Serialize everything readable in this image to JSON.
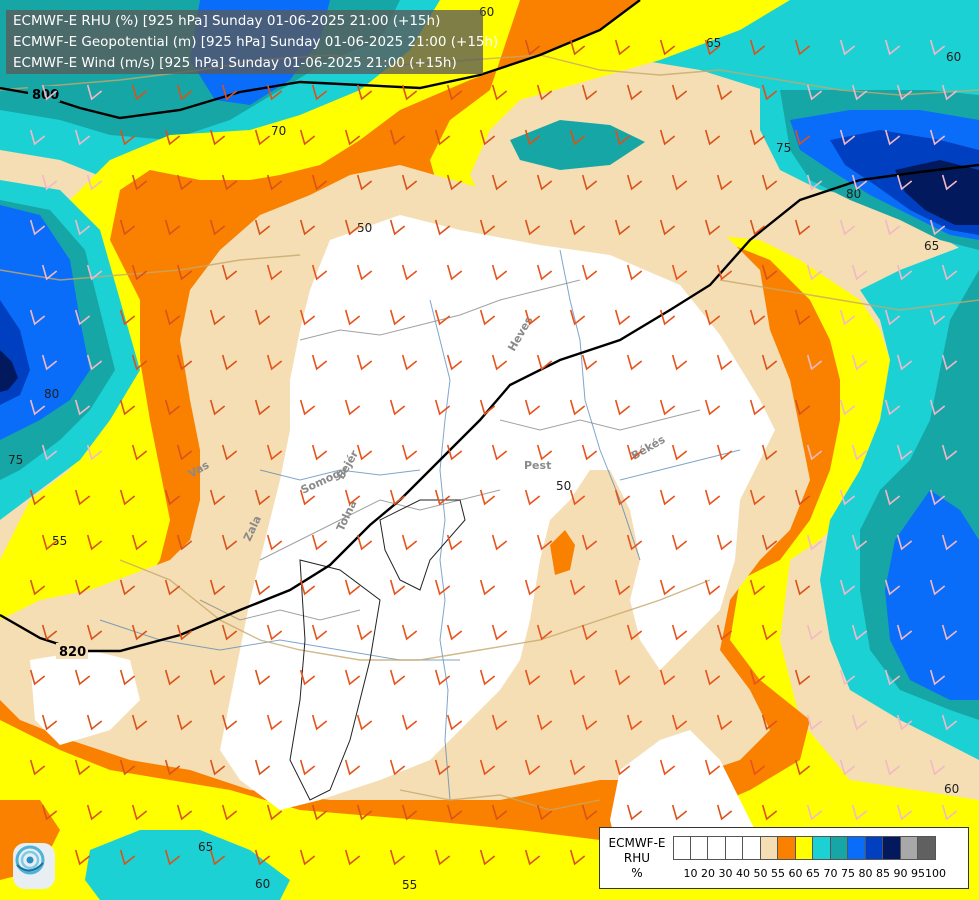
{
  "titles": [
    "ECMWF-E RHU (%) [925 hPa] Sunday 01-06-2025 21:00 (+15h)",
    "ECMWF-E Geopotential (m) [925 hPa] Sunday 01-06-2025 21:00 (+15h)",
    "ECMWF-E Wind (m/s) [925 hPa] Sunday 01-06-2025 21:00 (+15h)"
  ],
  "legend": {
    "title_lines": [
      "ECMWF-E",
      "RHU",
      "%"
    ],
    "swatches": [
      "#ffffff",
      "#ffffff",
      "#ffffff",
      "#ffffff",
      "#ffffff",
      "#f5deb3",
      "#fa8000",
      "#ffff00",
      "#1cd1d4",
      "#17a6a6",
      "#0a6dfa",
      "#0040c0",
      "#02195e",
      "#a8a8a8",
      "#606060"
    ],
    "tick_labels": [
      "10",
      "20",
      "30",
      "40",
      "50",
      "55",
      "60",
      "65",
      "70",
      "75",
      "80",
      "85",
      "90",
      "95",
      "100"
    ]
  },
  "geopotential_labels": [
    "800",
    "820"
  ],
  "rhu_contour_labels": [
    "50",
    "50",
    "55",
    "55",
    "60",
    "60",
    "60",
    "65",
    "65",
    "65",
    "70",
    "75",
    "75",
    "80",
    "80",
    "60"
  ],
  "region_labels": [
    "Heves",
    "Pest",
    "Békés",
    "Fejér",
    "Somogy",
    "Tolna",
    "Zala",
    "Vas"
  ],
  "colors": {
    "rhu_50": "#ffffff",
    "rhu_55": "#f5deb3",
    "rhu_60": "#fa8000",
    "rhu_65": "#ffff00",
    "rhu_70": "#1cd1d4",
    "rhu_75": "#17a6a6",
    "rhu_80": "#0a6dfa",
    "rhu_85": "#0040c0",
    "rhu_90": "#02195e"
  },
  "logo_icon": "ecmwf-swirl-icon"
}
